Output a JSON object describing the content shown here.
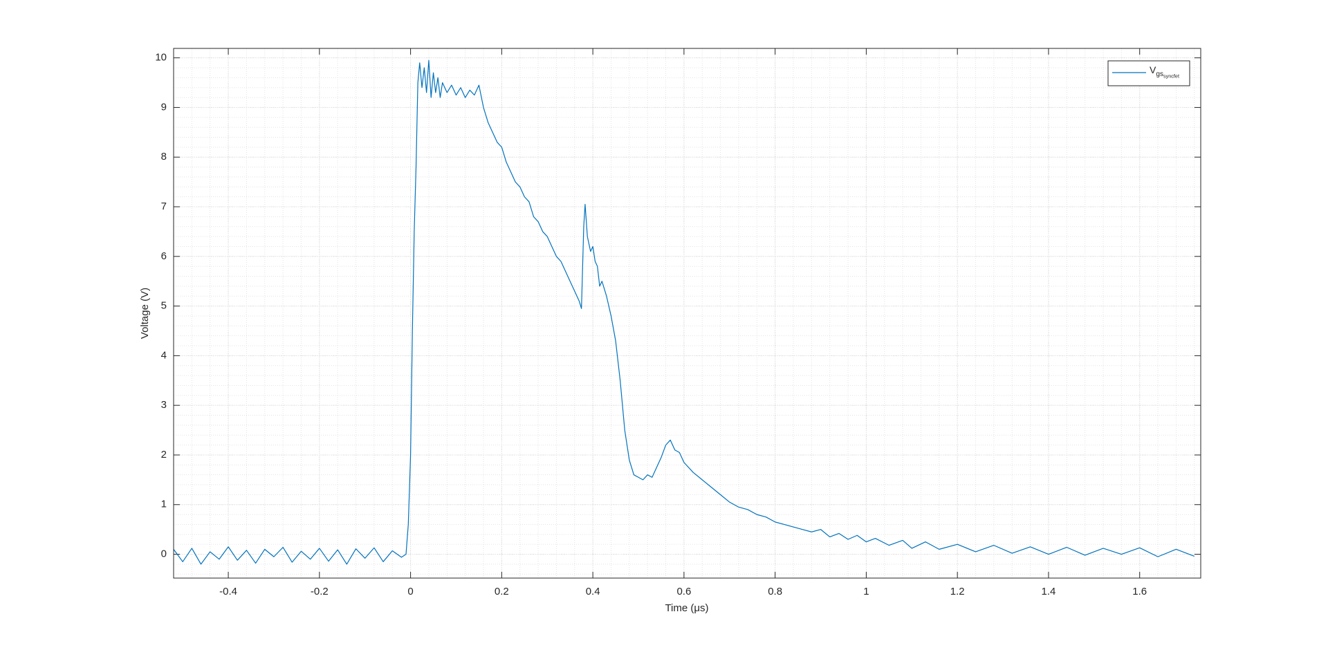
{
  "chart_data": {
    "type": "line",
    "xlabel": "Time (μs)",
    "ylabel": "Voltage (V)",
    "xlim": [
      -0.52,
      1.734
    ],
    "ylim": [
      -0.48,
      10.19
    ],
    "xticks": [
      -0.4,
      -0.2,
      0,
      0.2,
      0.4,
      0.6,
      0.8,
      1,
      1.2,
      1.4,
      1.6
    ],
    "yticks": [
      0,
      1,
      2,
      3,
      4,
      5,
      6,
      7,
      8,
      9,
      10
    ],
    "grid": true,
    "minor_grid": true,
    "legend": "top-right",
    "x": [
      -0.52,
      -0.5,
      -0.48,
      -0.46,
      -0.44,
      -0.42,
      -0.4,
      -0.38,
      -0.36,
      -0.34,
      -0.32,
      -0.3,
      -0.28,
      -0.26,
      -0.24,
      -0.22,
      -0.2,
      -0.18,
      -0.16,
      -0.14,
      -0.12,
      -0.1,
      -0.08,
      -0.06,
      -0.04,
      -0.02,
      -0.01,
      -0.005,
      0,
      0.004,
      0.008,
      0.012,
      0.016,
      0.02,
      0.025,
      0.03,
      0.035,
      0.04,
      0.045,
      0.05,
      0.055,
      0.06,
      0.065,
      0.07,
      0.08,
      0.09,
      0.1,
      0.11,
      0.12,
      0.13,
      0.14,
      0.15,
      0.16,
      0.17,
      0.18,
      0.19,
      0.2,
      0.21,
      0.22,
      0.23,
      0.24,
      0.25,
      0.26,
      0.27,
      0.28,
      0.29,
      0.3,
      0.31,
      0.32,
      0.33,
      0.34,
      0.35,
      0.36,
      0.37,
      0.375,
      0.38,
      0.383,
      0.388,
      0.395,
      0.4,
      0.405,
      0.41,
      0.415,
      0.42,
      0.43,
      0.44,
      0.45,
      0.46,
      0.47,
      0.48,
      0.49,
      0.5,
      0.51,
      0.52,
      0.53,
      0.54,
      0.55,
      0.56,
      0.57,
      0.58,
      0.59,
      0.6,
      0.62,
      0.64,
      0.66,
      0.68,
      0.7,
      0.72,
      0.74,
      0.76,
      0.78,
      0.8,
      0.82,
      0.84,
      0.86,
      0.88,
      0.9,
      0.92,
      0.94,
      0.96,
      0.98,
      1.0,
      1.02,
      1.05,
      1.08,
      1.1,
      1.13,
      1.16,
      1.2,
      1.24,
      1.28,
      1.32,
      1.36,
      1.4,
      1.44,
      1.48,
      1.52,
      1.56,
      1.6,
      1.64,
      1.68,
      1.72
    ],
    "series": [
      {
        "name": "V_{gs_{syncfet}}",
        "color": "#0072bd",
        "values": [
          0.1,
          -0.15,
          0.12,
          -0.2,
          0.05,
          -0.1,
          0.15,
          -0.12,
          0.08,
          -0.18,
          0.1,
          -0.05,
          0.14,
          -0.16,
          0.06,
          -0.1,
          0.12,
          -0.14,
          0.09,
          -0.2,
          0.11,
          -0.08,
          0.13,
          -0.15,
          0.07,
          -0.06,
          0.0,
          0.6,
          2.0,
          4.5,
          6.5,
          7.8,
          9.5,
          9.9,
          9.4,
          9.8,
          9.3,
          9.95,
          9.2,
          9.7,
          9.3,
          9.6,
          9.2,
          9.5,
          9.3,
          9.45,
          9.25,
          9.4,
          9.2,
          9.35,
          9.25,
          9.45,
          9.0,
          8.7,
          8.5,
          8.3,
          8.2,
          7.9,
          7.7,
          7.5,
          7.4,
          7.2,
          7.1,
          6.8,
          6.7,
          6.5,
          6.4,
          6.2,
          6.0,
          5.9,
          5.7,
          5.5,
          5.3,
          5.1,
          4.95,
          6.6,
          7.05,
          6.4,
          6.1,
          6.2,
          5.9,
          5.8,
          5.4,
          5.5,
          5.2,
          4.8,
          4.3,
          3.5,
          2.5,
          1.9,
          1.6,
          1.55,
          1.5,
          1.6,
          1.55,
          1.75,
          1.95,
          2.2,
          2.3,
          2.1,
          2.05,
          1.85,
          1.65,
          1.5,
          1.35,
          1.2,
          1.05,
          0.95,
          0.9,
          0.8,
          0.75,
          0.65,
          0.6,
          0.55,
          0.5,
          0.45,
          0.5,
          0.35,
          0.42,
          0.3,
          0.38,
          0.25,
          0.32,
          0.18,
          0.28,
          0.12,
          0.25,
          0.1,
          0.2,
          0.05,
          0.18,
          0.02,
          0.15,
          0.0,
          0.14,
          -0.02,
          0.12,
          0.0,
          0.13,
          -0.05,
          0.1,
          -0.04
        ]
      }
    ]
  }
}
